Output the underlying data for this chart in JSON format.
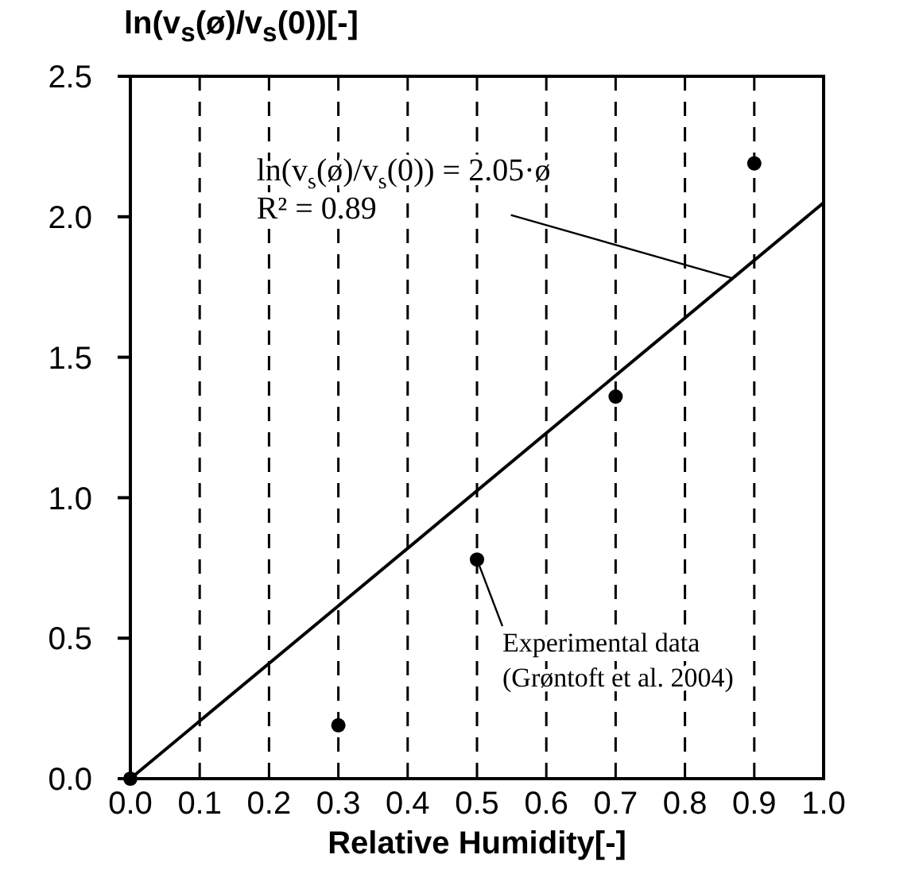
{
  "chart_data": {
    "type": "scatter",
    "ylabel": "ln(v$_{s}$(ø)/v$_{s}$(0))[-]",
    "xlabel": "Relative Humidity[-]",
    "series": [
      {
        "color": "#000000",
        "marker": "circle",
        "x": [
          0,
          0.3,
          0.5,
          0.7,
          0.9
        ],
        "values": [
          0,
          0.19,
          0.78,
          1.36,
          2.19
        ]
      },
      {
        "type": "line",
        "marker": "none",
        "color": "#000000",
        "x": [
          0,
          1
        ],
        "values": [
          0,
          2.05
        ]
      }
    ],
    "grid": "x",
    "xlim": [
      0,
      1
    ],
    "ylim": [
      0,
      2.5
    ],
    "xticks": [
      {
        "value": 0,
        "label": "0.0"
      },
      0.1,
      0.2,
      0.3,
      0.4,
      0.5,
      0.6,
      0.7,
      0.8,
      0.9,
      {
        "value": 1,
        "label": "1.0"
      }
    ],
    "yticks": [
      {
        "value": 0,
        "label": "0.0"
      },
      0.5,
      {
        "value": 1,
        "label": "1.0"
      },
      1.5,
      {
        "value": 2,
        "label": "2.0"
      },
      2.5
    ],
    "annotations": [
      {
        "text": "ln(v$_{s}$(ø)/v$_{s}$(0)) = 2.05·ø",
        "x": 0.87,
        "y": 1.78
      },
      "R² = 0.89",
      {
        "text": "Experimental data (Grøntoft et al. 2004)",
        "x": 0.5,
        "y": 0.78
      }
    ]
  }
}
